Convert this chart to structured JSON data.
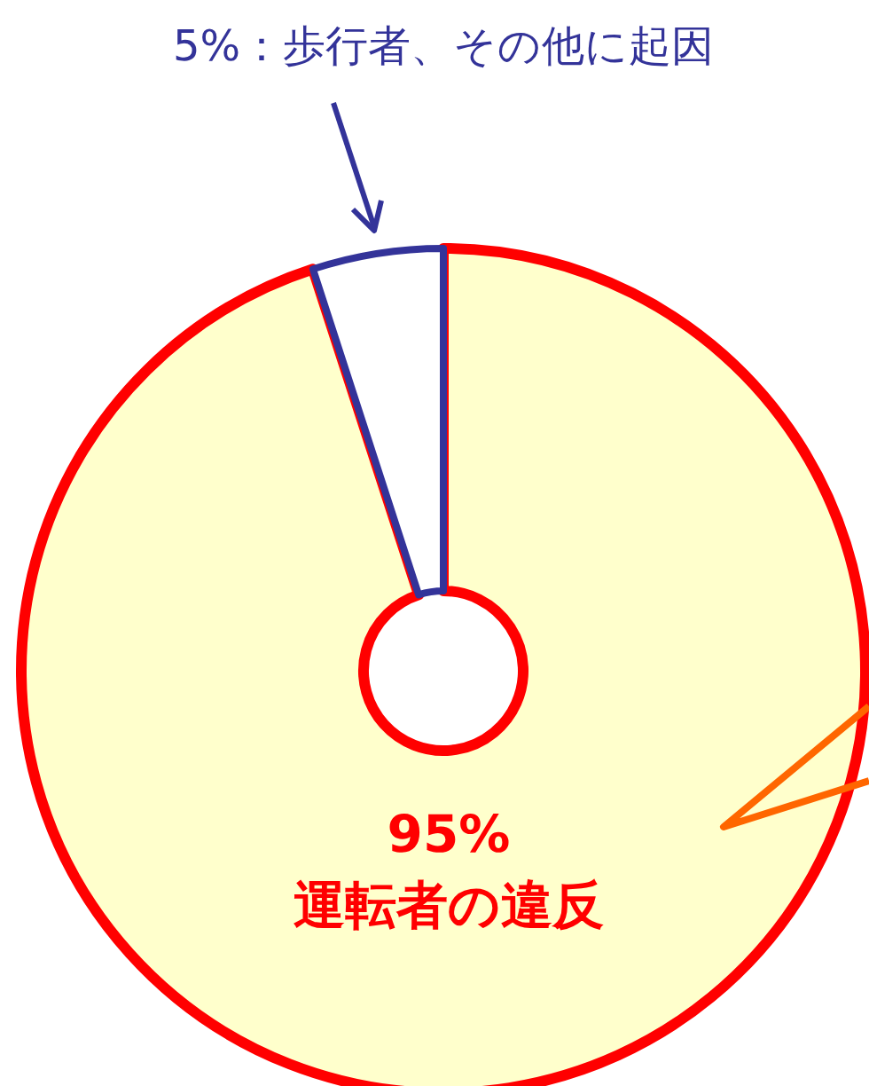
{
  "chart_data": {
    "type": "donut",
    "categories": [
      "運転者の違反",
      "歩行者、その他に起因"
    ],
    "values": [
      95,
      5
    ],
    "value_labels": [
      "95%",
      "5%"
    ],
    "colors": [
      "#ffffcc",
      "#ffffff"
    ],
    "data_labels": true,
    "legend": false
  }
}
